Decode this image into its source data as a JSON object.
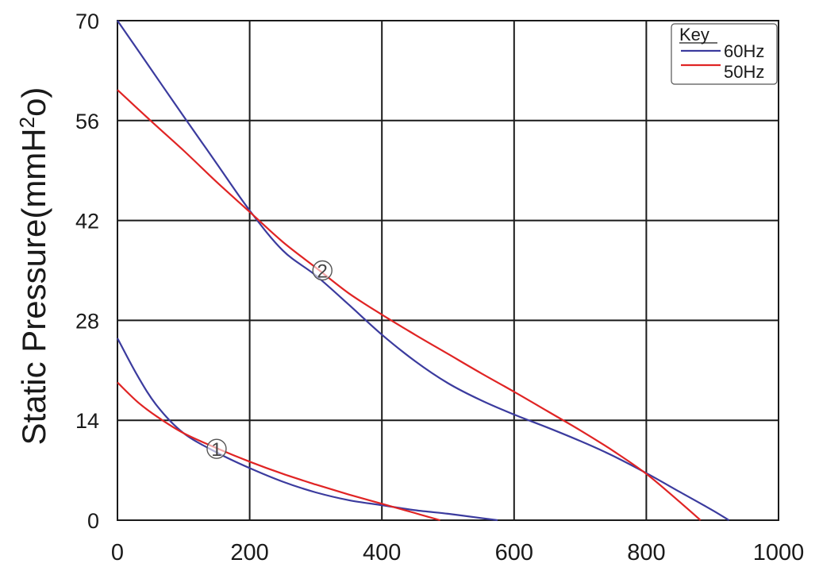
{
  "chart_data": {
    "type": "line",
    "title": "",
    "ylabel": "Static Pressure(mmH",
    "ylabel_sup": "2",
    "ylabel_end": "o)",
    "xlabel": "",
    "xlim": [
      0,
      1000
    ],
    "ylim": [
      0,
      70
    ],
    "x_ticks": [
      0,
      200,
      400,
      600,
      800,
      1000
    ],
    "y_ticks": [
      0,
      14,
      28,
      42,
      56,
      70
    ],
    "grid": true,
    "legend": {
      "title": "Key",
      "placement": "top-right",
      "entries": [
        "60Hz",
        "50Hz"
      ]
    },
    "colors": {
      "60Hz": "#3b3b9e",
      "50Hz": "#e02424"
    },
    "series": [
      {
        "name": "60Hz",
        "group": "1",
        "x": [
          0,
          30,
          60,
          100,
          150,
          200,
          250,
          300,
          350,
          400,
          450,
          500,
          550,
          575
        ],
        "y": [
          25.5,
          20.3,
          16,
          12.2,
          9.5,
          7.3,
          5.4,
          3.9,
          2.8,
          2.1,
          1.4,
          0.9,
          0.3,
          0
        ]
      },
      {
        "name": "50Hz",
        "group": "1",
        "x": [
          0,
          30,
          60,
          100,
          150,
          200,
          250,
          300,
          350,
          400,
          450,
          488
        ],
        "y": [
          19.3,
          16.6,
          14.5,
          12.2,
          10.1,
          8.2,
          6.5,
          5.0,
          3.6,
          2.3,
          1.0,
          0
        ]
      },
      {
        "name": "60Hz",
        "group": "2",
        "x": [
          0,
          50,
          100,
          150,
          200,
          250,
          300,
          350,
          400,
          450,
          500,
          550,
          600,
          650,
          700,
          750,
          800,
          850,
          900,
          925
        ],
        "y": [
          70,
          63.3,
          56.6,
          50,
          43.4,
          37.8,
          34.3,
          30.2,
          26.0,
          22.3,
          19.2,
          16.8,
          14.8,
          13.0,
          11.1,
          9.0,
          6.6,
          4.0,
          1.4,
          0
        ]
      },
      {
        "name": "50Hz",
        "group": "2",
        "x": [
          0,
          50,
          100,
          150,
          200,
          250,
          300,
          350,
          400,
          450,
          500,
          550,
          600,
          650,
          700,
          750,
          800,
          850,
          882
        ],
        "y": [
          60.3,
          56.0,
          51.8,
          47.4,
          43.2,
          39.0,
          35.4,
          31.8,
          28.8,
          26.0,
          23.3,
          20.6,
          18.0,
          15.3,
          12.6,
          9.7,
          6.5,
          2.6,
          0
        ]
      }
    ],
    "annotations": [
      {
        "label": "1",
        "x": 150,
        "y": 10
      },
      {
        "label": "2",
        "x": 310,
        "y": 35
      }
    ]
  }
}
